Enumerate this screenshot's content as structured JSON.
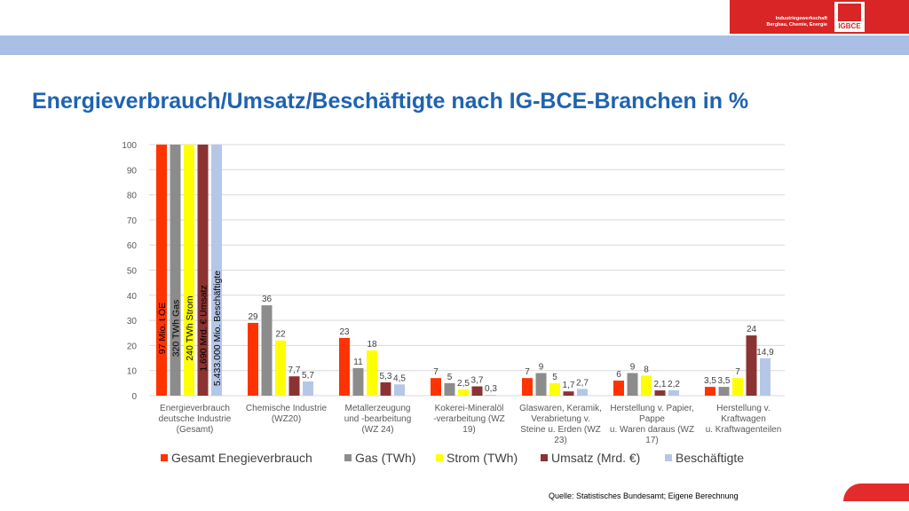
{
  "title": "Energieverbrauch/Umsatz/Beschäftigte nach IG-BCE-Branchen in %",
  "logo": {
    "line1": "Industriegewerkschaft",
    "line2": "Bergbau, Chemie, Energie",
    "mark": "IGBCE"
  },
  "source": "Quelle: Statistisches Bundesamt; Eigene Berechnung",
  "colors": {
    "title": "#1f63b0",
    "band": "#a9bfe6",
    "brand_red": "#d92525"
  },
  "chart_data": {
    "type": "bar",
    "ylim": [
      0,
      100
    ],
    "yticks": [
      0,
      10,
      20,
      30,
      40,
      50,
      60,
      70,
      80,
      90,
      100
    ],
    "grid": true,
    "legend_position": "bottom",
    "categories": [
      [
        "Energieverbrauch",
        "deutsche Industrie",
        "(Gesamt)"
      ],
      [
        "Chemische Industrie",
        "(WZ20)"
      ],
      [
        "Metallerzeugung",
        "und -bearbeitung",
        "(WZ 24)"
      ],
      [
        "Kokerei-Mineralöl",
        "-verarbeitung (WZ",
        "19)"
      ],
      [
        "Glaswaren, Keramik,",
        "Verabrietung v.",
        "Steine u. Erden (WZ",
        "23)"
      ],
      [
        "Herstellung v. Papier,",
        "Pappe",
        "u. Waren daraus (WZ",
        "17)"
      ],
      [
        "Herstellung v.",
        "Kraftwagen",
        "u. Kraftwagenteilen"
      ]
    ],
    "series": [
      {
        "name": "Gesamt Enegieverbrauch",
        "color": "#ff3300",
        "values": [
          100,
          29,
          23,
          7,
          7,
          6,
          3.5
        ],
        "labels": [
          "",
          "29",
          "23",
          "7",
          "7",
          "6",
          "3,5"
        ]
      },
      {
        "name": "Gas (TWh)",
        "color": "#8c8c8c",
        "values": [
          100,
          36,
          11,
          5,
          9,
          9,
          3.5
        ],
        "labels": [
          "",
          "36",
          "11",
          "5",
          "9",
          "9",
          "3,5"
        ]
      },
      {
        "name": "Strom (TWh)",
        "color": "#ffff00",
        "values": [
          100,
          22,
          18,
          2.5,
          5,
          8,
          7
        ],
        "labels": [
          "",
          "22",
          "18",
          "2,5",
          "5",
          "8",
          "7"
        ]
      },
      {
        "name": "Umsatz (Mrd. €)",
        "color": "#8b3333",
        "values": [
          100,
          7.7,
          5.3,
          3.7,
          1.7,
          2.1,
          24
        ],
        "labels": [
          "",
          "7,7",
          "5,3",
          "3,7",
          "1,7",
          "2,1",
          "24"
        ]
      },
      {
        "name": "Beschäftigte",
        "color": "#b4c7e7",
        "values": [
          100,
          5.7,
          4.5,
          0.3,
          2.7,
          2.2,
          14.9
        ],
        "labels": [
          "",
          "5,7",
          "4,5",
          "0,3",
          "2,7",
          "2,2",
          "14,9"
        ]
      }
    ],
    "totals_annotations": [
      "97 Mio. t ÖE",
      "320 TWh Gas",
      "240 TWh Strom",
      "1.690 Mrd. € Umsatz",
      "5.433.000 Mio. Beschäftigte"
    ]
  }
}
